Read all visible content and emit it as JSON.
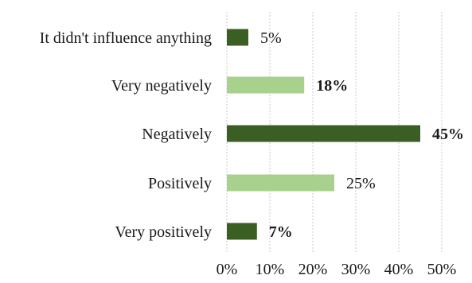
{
  "chart_data": {
    "type": "bar",
    "orientation": "horizontal",
    "title": "",
    "xlabel": "",
    "ylabel": "",
    "xlim": [
      0,
      50
    ],
    "grid": true,
    "legend": "none",
    "categories": [
      "It didn't influence anything",
      "Very negatively",
      "Negatively",
      "Positively",
      "Very positively"
    ],
    "values": [
      5,
      18,
      45,
      25,
      7
    ],
    "data_labels": [
      "5%",
      "18%",
      "45%",
      "25%",
      "7%"
    ],
    "label_bold": [
      false,
      true,
      true,
      false,
      true
    ],
    "colors": [
      "#3b5e23",
      "#a9d18e",
      "#3b5e23",
      "#a9d18e",
      "#3b5e23"
    ],
    "x_ticks": [
      0,
      10,
      20,
      30,
      40,
      50
    ],
    "x_tick_labels": [
      "0%",
      "10%",
      "20%",
      "30%",
      "40%",
      "50%"
    ]
  }
}
